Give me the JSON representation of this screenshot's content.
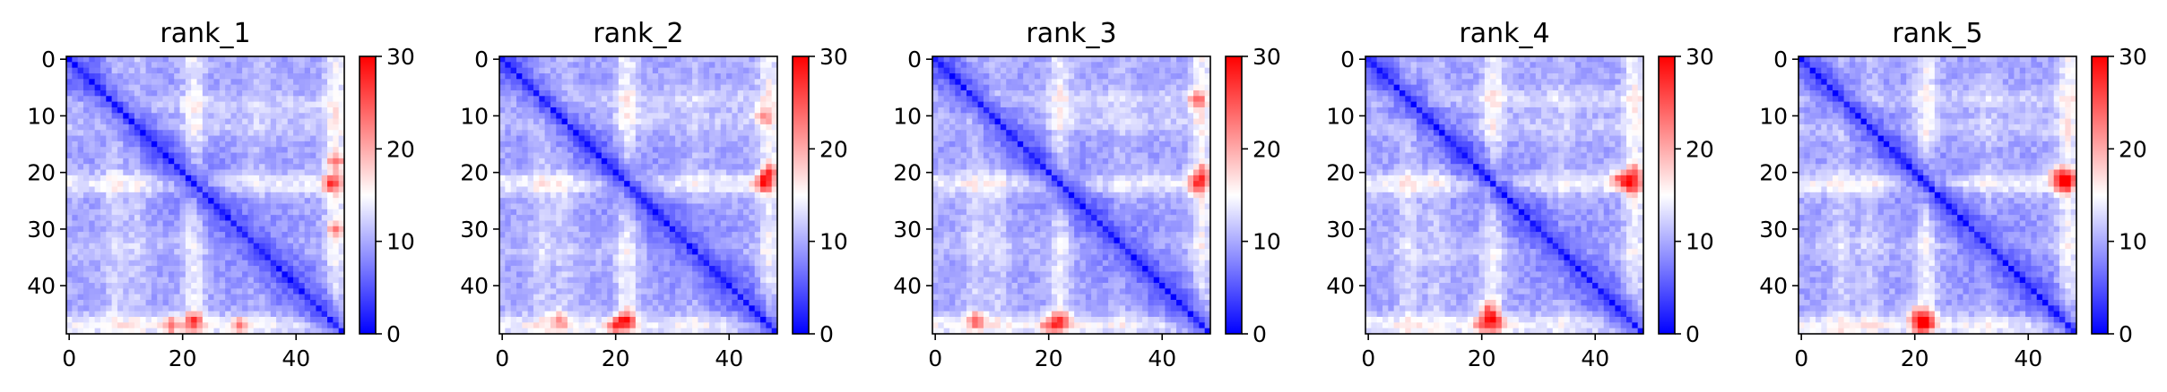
{
  "chart_data": [
    {
      "type": "heatmap",
      "title": "rank_1",
      "n": 49,
      "xlim": [
        0,
        48
      ],
      "ylim": [
        48,
        0
      ],
      "x_ticks": [
        0,
        20,
        40
      ],
      "y_ticks": [
        0,
        10,
        20,
        30,
        40
      ],
      "colorbar": {
        "min": 0,
        "max": 30,
        "ticks": [
          0,
          10,
          20,
          30
        ],
        "colors": [
          "#0000ff",
          "#ffffff",
          "#ff0000"
        ]
      },
      "features": {
        "band_rows": [
          [
            8,
            0.7
          ],
          [
            12,
            0.6
          ],
          [
            22,
            1.3
          ],
          [
            33,
            0.4
          ],
          [
            47,
            1.4
          ]
        ],
        "hot_spots": [
          [
            22,
            46,
            22
          ],
          [
            47,
            18,
            24
          ],
          [
            47,
            30,
            22
          ]
        ]
      }
    },
    {
      "type": "heatmap",
      "title": "rank_2",
      "n": 49,
      "xlim": [
        0,
        48
      ],
      "ylim": [
        48,
        0
      ],
      "x_ticks": [
        0,
        20,
        40
      ],
      "y_ticks": [
        0,
        10,
        20,
        30,
        40
      ],
      "colorbar": {
        "min": 0,
        "max": 30,
        "ticks": [
          0,
          10,
          20,
          30
        ],
        "colors": [
          "#0000ff",
          "#ffffff",
          "#ff0000"
        ]
      },
      "features": {
        "band_rows": [
          [
            7,
            0.7
          ],
          [
            11,
            0.6
          ],
          [
            22,
            1.4
          ],
          [
            34,
            0.4
          ],
          [
            47,
            1.4
          ]
        ],
        "hot_spots": [
          [
            22,
            46,
            24
          ],
          [
            10,
            46,
            20
          ],
          [
            47,
            20,
            24
          ]
        ]
      }
    },
    {
      "type": "heatmap",
      "title": "rank_3",
      "n": 49,
      "xlim": [
        0,
        48
      ],
      "ylim": [
        48,
        0
      ],
      "x_ticks": [
        0,
        20,
        40
      ],
      "y_ticks": [
        0,
        10,
        20,
        30,
        40
      ],
      "colorbar": {
        "min": 0,
        "max": 30,
        "ticks": [
          0,
          10,
          20,
          30
        ],
        "colors": [
          "#0000ff",
          "#ffffff",
          "#ff0000"
        ]
      },
      "features": {
        "band_rows": [
          [
            7,
            0.7
          ],
          [
            11,
            0.6
          ],
          [
            22,
            1.3
          ],
          [
            33,
            0.4
          ],
          [
            47,
            1.4
          ]
        ],
        "hot_spots": [
          [
            22,
            46,
            22
          ],
          [
            7,
            46,
            22
          ],
          [
            47,
            20,
            22
          ]
        ]
      }
    },
    {
      "type": "heatmap",
      "title": "rank_4",
      "n": 49,
      "xlim": [
        0,
        48
      ],
      "ylim": [
        48,
        0
      ],
      "x_ticks": [
        0,
        20,
        40
      ],
      "y_ticks": [
        0,
        10,
        20,
        30,
        40
      ],
      "colorbar": {
        "min": 0,
        "max": 30,
        "ticks": [
          0,
          10,
          20,
          30
        ],
        "colors": [
          "#0000ff",
          "#ffffff",
          "#ff0000"
        ]
      },
      "features": {
        "band_rows": [
          [
            7,
            0.8
          ],
          [
            12,
            0.6
          ],
          [
            22,
            1.4
          ],
          [
            34,
            0.4
          ],
          [
            47,
            1.4
          ]
        ],
        "hot_spots": [
          [
            22,
            46,
            25
          ],
          [
            21,
            44,
            22
          ],
          [
            47,
            20,
            22
          ]
        ]
      }
    },
    {
      "type": "heatmap",
      "title": "rank_5",
      "n": 49,
      "xlim": [
        0,
        48
      ],
      "ylim": [
        48,
        0
      ],
      "x_ticks": [
        0,
        20,
        40
      ],
      "y_ticks": [
        0,
        10,
        20,
        30,
        40
      ],
      "colorbar": {
        "min": 0,
        "max": 30,
        "ticks": [
          0,
          10,
          20,
          30
        ],
        "colors": [
          "#0000ff",
          "#ffffff",
          "#ff0000"
        ]
      },
      "features": {
        "band_rows": [
          [
            7,
            0.7
          ],
          [
            12,
            0.6
          ],
          [
            22,
            1.4
          ],
          [
            33,
            0.4
          ],
          [
            47,
            1.4
          ]
        ],
        "hot_spots": [
          [
            22,
            46,
            26
          ],
          [
            20,
            45,
            22
          ],
          [
            47,
            21,
            24
          ]
        ]
      }
    }
  ]
}
